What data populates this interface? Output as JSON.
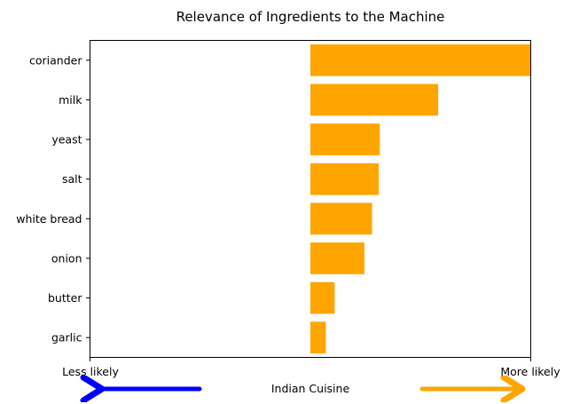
{
  "chart_data": {
    "type": "bar",
    "orientation": "horizontal",
    "title": "Relevance of Ingredients to the Machine",
    "xlabel": "Indian Cuisine",
    "x_left_label": "Less likely",
    "x_right_label": "More likely",
    "categories": [
      "coriander",
      "milk",
      "yeast",
      "salt",
      "white bread",
      "onion",
      "butter",
      "garlic"
    ],
    "values": [
      1.0,
      0.58,
      0.315,
      0.31,
      0.28,
      0.245,
      0.11,
      0.07
    ],
    "xlim": [
      -1.0,
      1.0
    ],
    "bar_color": "#FFA500",
    "arrow_left_color": "#0000FF",
    "arrow_right_color": "#FFA500",
    "grid": false
  }
}
